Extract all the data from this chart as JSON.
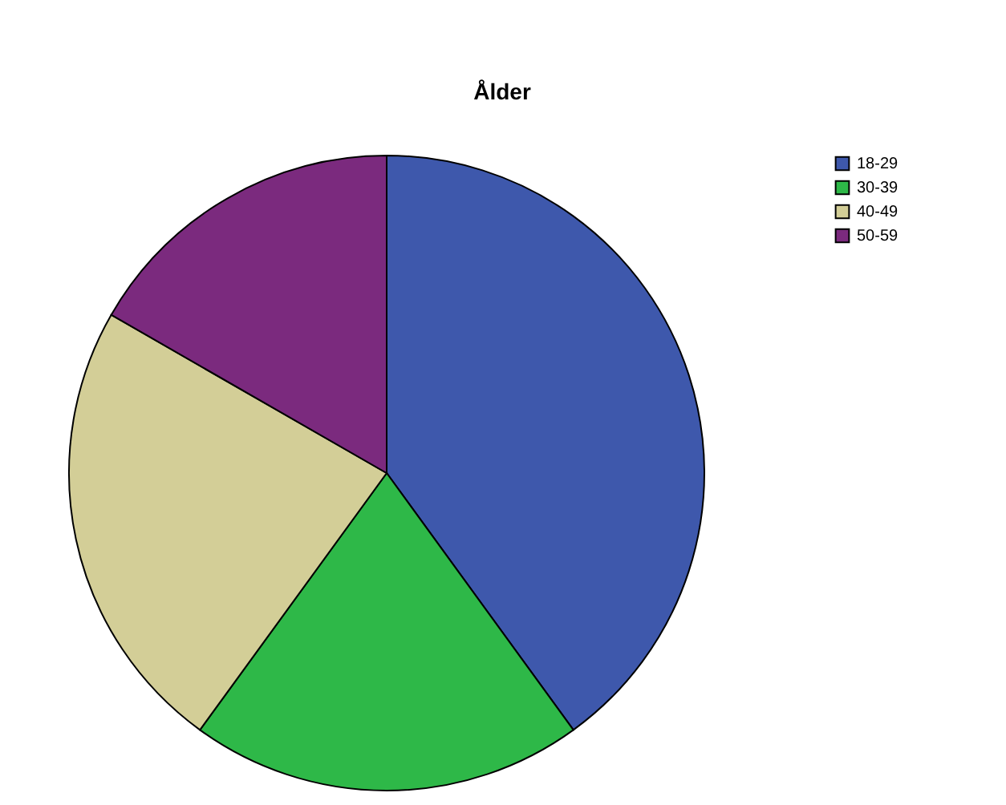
{
  "chart_data": {
    "type": "pie",
    "title": "Ålder",
    "categories": [
      "18-29",
      "30-39",
      "40-49",
      "50-59"
    ],
    "values": [
      40,
      20,
      23.3,
      16.7
    ],
    "colors": [
      "#3e58ac",
      "#2eb848",
      "#d3ce97",
      "#7b2a7e"
    ],
    "legend": "top right"
  }
}
